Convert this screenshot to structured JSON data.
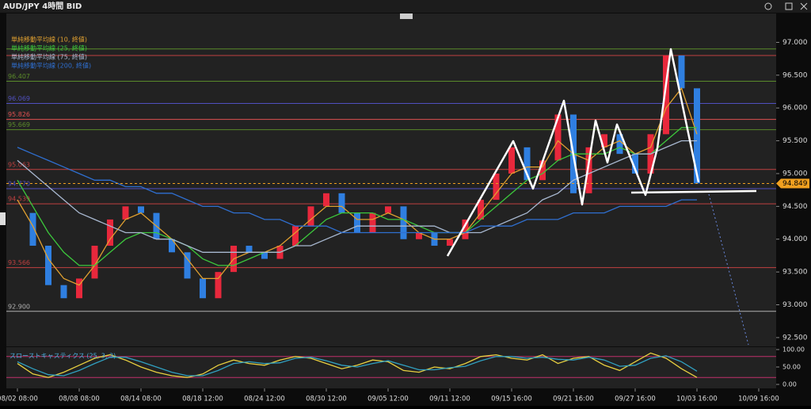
{
  "title_bar": {
    "title": "AUD/JPY 4時間 BID"
  },
  "chart_data": {
    "type": "line",
    "categories": [
      "08/02 08:00",
      null,
      null,
      null,
      "08/08 08:00",
      null,
      null,
      null,
      "08/14 08:00",
      null,
      null,
      null,
      "08/18 12:00",
      null,
      null,
      null,
      "08/24 12:00",
      null,
      null,
      null,
      "08/30 12:00",
      null,
      null,
      null,
      "09/05 12:00",
      null,
      null,
      null,
      "09/11 12:00",
      null,
      null,
      null,
      "09/15 16:00",
      null,
      null,
      null,
      "09/21 16:00",
      null,
      null,
      null,
      "09/27 16:00",
      null,
      null,
      null,
      "10/03 16:00",
      null,
      null,
      null,
      "10/09 16:00",
      null,
      null,
      null
    ],
    "values": [
      94.4,
      93.9,
      93.3,
      93.1,
      93.4,
      93.9,
      94.3,
      94.5,
      94.4,
      94.0,
      93.8,
      93.4,
      93.1,
      93.5,
      93.9,
      93.8,
      93.7,
      93.9,
      94.2,
      94.5,
      94.7,
      94.4,
      94.1,
      94.4,
      94.5,
      94.0,
      94.1,
      93.9,
      94.0,
      94.3,
      94.6,
      95.0,
      95.4,
      94.9,
      95.2,
      95.9,
      94.7,
      95.4,
      95.6,
      95.3,
      95.0,
      95.6,
      96.8,
      96.3,
      94.85,
      null,
      null,
      null,
      null,
      null,
      null,
      null
    ],
    "up_color": "#e8283c",
    "down_color": "#2f7fe0",
    "series": [
      {
        "name": "単純移動平均線 (10, 終値)",
        "color": "#e0a030",
        "values": [
          94.6,
          94.2,
          93.7,
          93.4,
          93.3,
          93.6,
          94.0,
          94.3,
          94.4,
          94.2,
          94.0,
          93.7,
          93.4,
          93.4,
          93.7,
          93.8,
          93.8,
          93.9,
          94.1,
          94.3,
          94.5,
          94.5,
          94.3,
          94.3,
          94.4,
          94.3,
          94.1,
          94.0,
          94.0,
          94.1,
          94.4,
          94.7,
          95.0,
          95.1,
          95.1,
          95.5,
          95.3,
          95.2,
          95.4,
          95.5,
          95.3,
          95.4,
          96.0,
          96.3,
          95.6,
          null,
          null,
          null,
          null,
          null,
          null,
          null
        ]
      },
      {
        "name": "単純移動平均線 (25, 終値)",
        "color": "#3cc83c",
        "values": [
          94.9,
          94.5,
          94.1,
          93.8,
          93.6,
          93.6,
          93.8,
          94.0,
          94.1,
          94.1,
          94.0,
          93.9,
          93.7,
          93.6,
          93.6,
          93.7,
          93.8,
          93.8,
          93.9,
          94.1,
          94.3,
          94.4,
          94.4,
          94.4,
          94.3,
          94.3,
          94.2,
          94.1,
          94.1,
          94.1,
          94.3,
          94.5,
          94.7,
          94.9,
          95.0,
          95.2,
          95.3,
          95.3,
          95.3,
          95.4,
          95.3,
          95.3,
          95.5,
          95.7,
          95.7,
          null,
          null,
          null,
          null,
          null,
          null,
          null
        ]
      },
      {
        "name": "単純移動平均線 (75, 終値)",
        "color": "#a8b8d0",
        "values": [
          95.2,
          95.0,
          94.8,
          94.6,
          94.4,
          94.3,
          94.2,
          94.1,
          94.1,
          94.0,
          94.0,
          93.9,
          93.8,
          93.8,
          93.8,
          93.8,
          93.8,
          93.8,
          93.9,
          93.9,
          94.0,
          94.1,
          94.2,
          94.2,
          94.2,
          94.2,
          94.2,
          94.2,
          94.1,
          94.1,
          94.1,
          94.2,
          94.3,
          94.4,
          94.6,
          94.7,
          94.9,
          95.0,
          95.1,
          95.2,
          95.3,
          95.3,
          95.4,
          95.5,
          95.5,
          null,
          null,
          null,
          null,
          null,
          null,
          null
        ]
      },
      {
        "name": "単純移動平均線 (200, 終値)",
        "color": "#2f6fd0",
        "values": [
          95.4,
          95.3,
          95.2,
          95.1,
          95.0,
          94.9,
          94.9,
          94.8,
          94.8,
          94.7,
          94.7,
          94.6,
          94.5,
          94.5,
          94.4,
          94.4,
          94.3,
          94.3,
          94.2,
          94.2,
          94.2,
          94.1,
          94.1,
          94.1,
          94.1,
          94.1,
          94.1,
          94.1,
          94.1,
          94.1,
          94.2,
          94.2,
          94.2,
          94.3,
          94.3,
          94.3,
          94.4,
          94.4,
          94.4,
          94.5,
          94.5,
          94.5,
          94.5,
          94.6,
          94.6,
          null,
          null,
          null,
          null,
          null,
          null,
          null
        ]
      }
    ],
    "ylim": [
      92.39,
      97.38
    ],
    "yticks": [
      {
        "value": 92.5,
        "label": "92.500"
      },
      {
        "value": 93,
        "label": "93.000"
      },
      {
        "value": 93.5,
        "label": "93.500"
      },
      {
        "value": 94,
        "label": "94.000"
      },
      {
        "value": 94.5,
        "label": "94.500"
      },
      {
        "value": 95,
        "label": "95.000"
      },
      {
        "value": 95.5,
        "label": "95.500"
      },
      {
        "value": 96,
        "label": "96.000"
      },
      {
        "value": 96.5,
        "label": "96.500"
      },
      {
        "value": 97,
        "label": "97.000"
      }
    ],
    "levels": [
      {
        "value": 96.9,
        "color": "#5a8a2a"
      },
      {
        "value": 96.8,
        "color": "#c04040"
      },
      {
        "value": 96.407,
        "label": "96.407",
        "color": "#5a8a2a"
      },
      {
        "value": 96.069,
        "label": "96.069",
        "color": "#5050c0"
      },
      {
        "value": 95.826,
        "label": "95.826",
        "color": "#e05050"
      },
      {
        "value": 95.669,
        "label": "95.669",
        "color": "#5a8a2a"
      },
      {
        "value": 95.063,
        "label": "95.063",
        "color": "#c04040"
      },
      {
        "value": 94.77,
        "label": "94.770",
        "color": "#5050c0"
      },
      {
        "value": 94.539,
        "label": "94.539",
        "color": "#c04040"
      },
      {
        "value": 93.566,
        "label": "93.566",
        "color": "#c04040"
      },
      {
        "value": 92.9,
        "label": "92.900",
        "color": "#b0b0b0"
      }
    ],
    "current_price": {
      "value": 94.849,
      "color": "#f0a020"
    },
    "stochastic": {
      "title": "スローストキャスティクス (25, 3, 3)",
      "ylim": [
        0,
        100
      ],
      "yticks": [
        {
          "value": 0,
          "label": "0.00"
        },
        {
          "value": 50,
          "label": "50.00"
        },
        {
          "value": 100,
          "label": "100.00"
        }
      ],
      "levels": [
        20,
        80
      ],
      "series": [
        {
          "color": "#e8d040",
          "values": [
            60,
            30,
            20,
            35,
            55,
            75,
            85,
            70,
            50,
            35,
            25,
            20,
            30,
            55,
            70,
            60,
            55,
            70,
            80,
            75,
            60,
            45,
            55,
            70,
            65,
            40,
            35,
            50,
            45,
            60,
            80,
            85,
            75,
            70,
            85,
            60,
            75,
            80,
            55,
            40,
            65,
            90,
            75,
            45,
            20,
            null,
            null,
            null,
            null,
            null,
            null,
            null
          ]
        },
        {
          "color": "#30a0c0",
          "values": [
            65,
            45,
            28,
            25,
            40,
            60,
            78,
            78,
            65,
            50,
            35,
            25,
            25,
            40,
            60,
            65,
            60,
            62,
            75,
            78,
            68,
            55,
            50,
            60,
            68,
            55,
            42,
            42,
            48,
            52,
            68,
            80,
            80,
            75,
            78,
            72,
            70,
            78,
            70,
            52,
            55,
            75,
            82,
            65,
            38,
            null,
            null,
            null,
            null,
            null,
            null,
            null
          ]
        }
      ]
    }
  }
}
